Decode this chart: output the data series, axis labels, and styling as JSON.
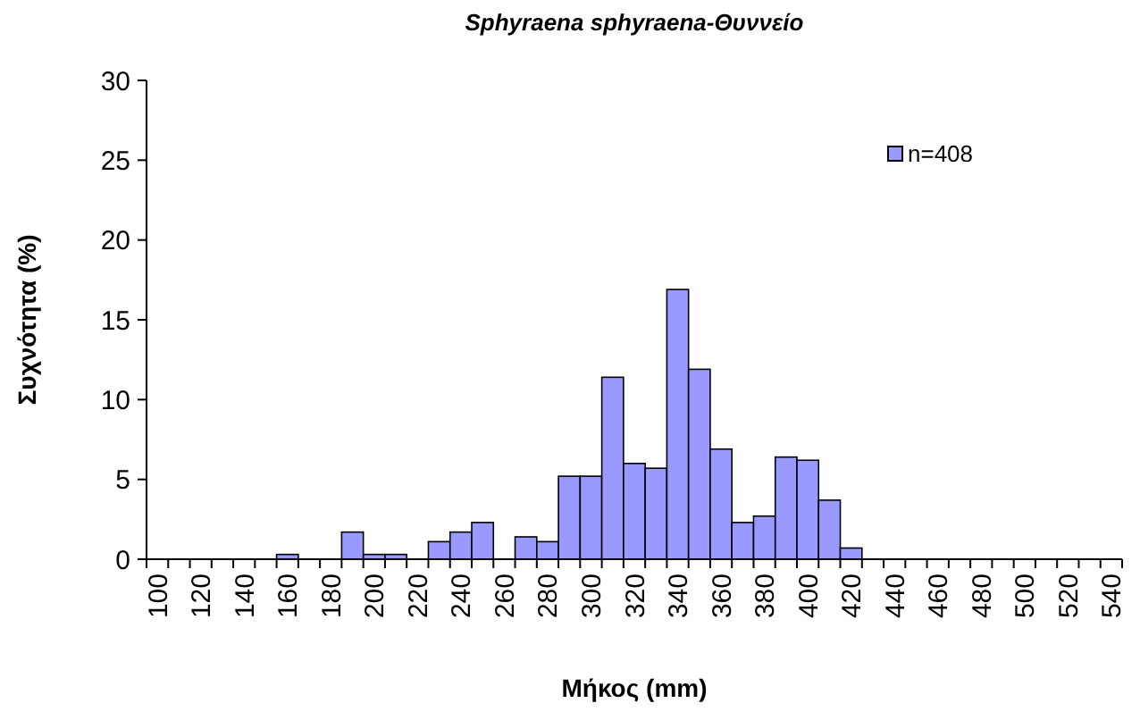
{
  "chart_data": {
    "type": "bar",
    "title": "Sphyraena sphyraena-Θυννείο",
    "xlabel": "Μήκος (mm)",
    "ylabel": "Συχνότητα (%)",
    "categories": [
      "100",
      null,
      "120",
      null,
      "140",
      null,
      "160",
      null,
      "180",
      null,
      "200",
      null,
      "220",
      null,
      "240",
      null,
      "260",
      null,
      "280",
      null,
      "300",
      null,
      "320",
      null,
      "340",
      null,
      "360",
      null,
      "380",
      null,
      "400",
      null,
      "420",
      null,
      "440",
      null,
      "460",
      null,
      "480",
      null,
      "500",
      null,
      "520",
      null,
      "540"
    ],
    "series": [
      {
        "name": "n=408",
        "color": "#9999ff",
        "values": [
          0,
          0,
          0,
          0,
          0,
          0,
          0.3,
          0,
          0,
          1.7,
          0.3,
          0.3,
          0,
          1.1,
          1.7,
          2.3,
          0,
          1.4,
          1.1,
          5.2,
          5.2,
          11.4,
          6.0,
          5.7,
          16.9,
          11.9,
          6.9,
          2.3,
          2.7,
          6.4,
          6.2,
          3.7,
          0.7,
          0,
          0,
          0,
          0,
          0,
          0,
          0,
          0,
          0,
          0,
          0,
          0
        ]
      }
    ],
    "ylim": [
      0,
      30
    ],
    "yticks": [
      0,
      5,
      10,
      15,
      20,
      25,
      30
    ],
    "grid": false,
    "legend": "top right"
  }
}
